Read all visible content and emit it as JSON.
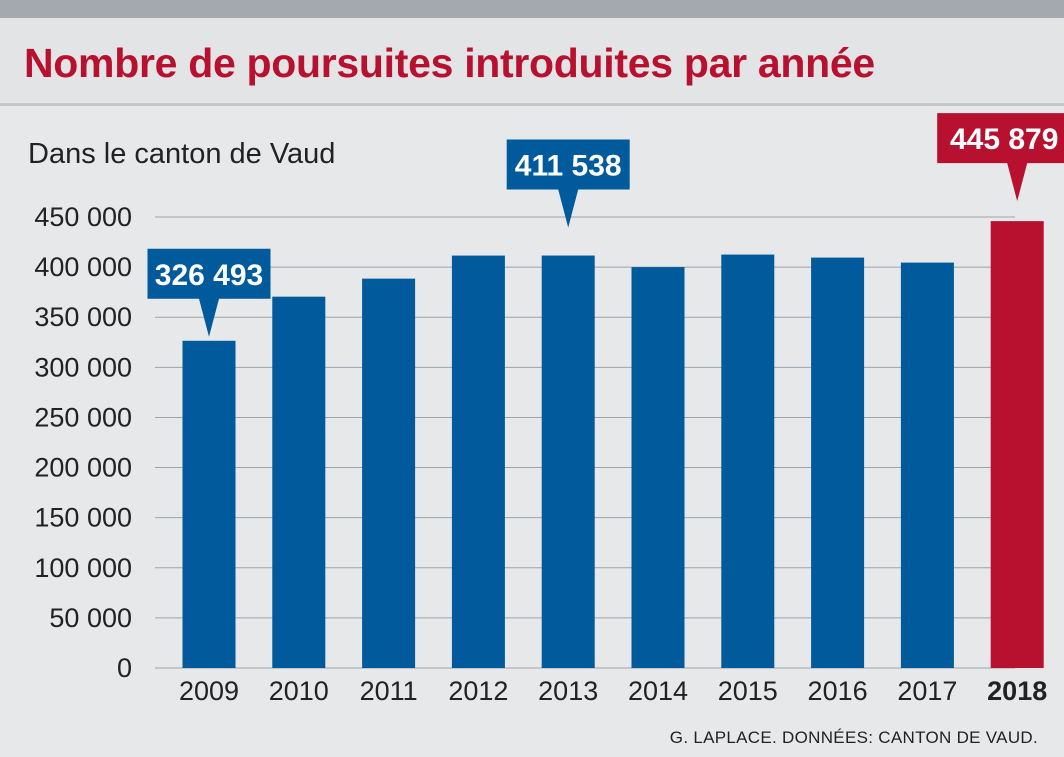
{
  "header": {
    "title": "Nombre de poursuites introduites par année"
  },
  "subtitle": "Dans le canton de Vaud",
  "source": "G. LAPLACE. DONNÉES: CANTON DE VAUD.",
  "colors": {
    "bar": "#005a9b",
    "highlight": "#b8102f",
    "grid": "#9ea3a8",
    "title": "#b8102f"
  },
  "chart_data": {
    "type": "bar",
    "title": "Nombre de poursuites introduites par année",
    "subtitle": "Dans le canton de Vaud",
    "xlabel": "",
    "ylabel": "",
    "categories": [
      "2009",
      "2010",
      "2011",
      "2012",
      "2013",
      "2014",
      "2015",
      "2016",
      "2017",
      "2018"
    ],
    "values": [
      326493,
      370500,
      388500,
      411500,
      411538,
      400000,
      412500,
      409500,
      404500,
      445879
    ],
    "highlight_index": 9,
    "ylim": [
      0,
      450000
    ],
    "yticks": [
      0,
      50000,
      100000,
      150000,
      200000,
      250000,
      300000,
      350000,
      400000,
      450000
    ],
    "ytick_labels": [
      "0",
      "50 000",
      "100 000",
      "150 000",
      "200 000",
      "250 000",
      "300 000",
      "350 000",
      "400 000",
      "450 000"
    ],
    "grid": true,
    "callouts": [
      {
        "index": 0,
        "label": "326 493",
        "color": "bar"
      },
      {
        "index": 4,
        "label": "411 538",
        "color": "bar"
      },
      {
        "index": 9,
        "label": "445 879",
        "color": "highlight"
      }
    ]
  }
}
